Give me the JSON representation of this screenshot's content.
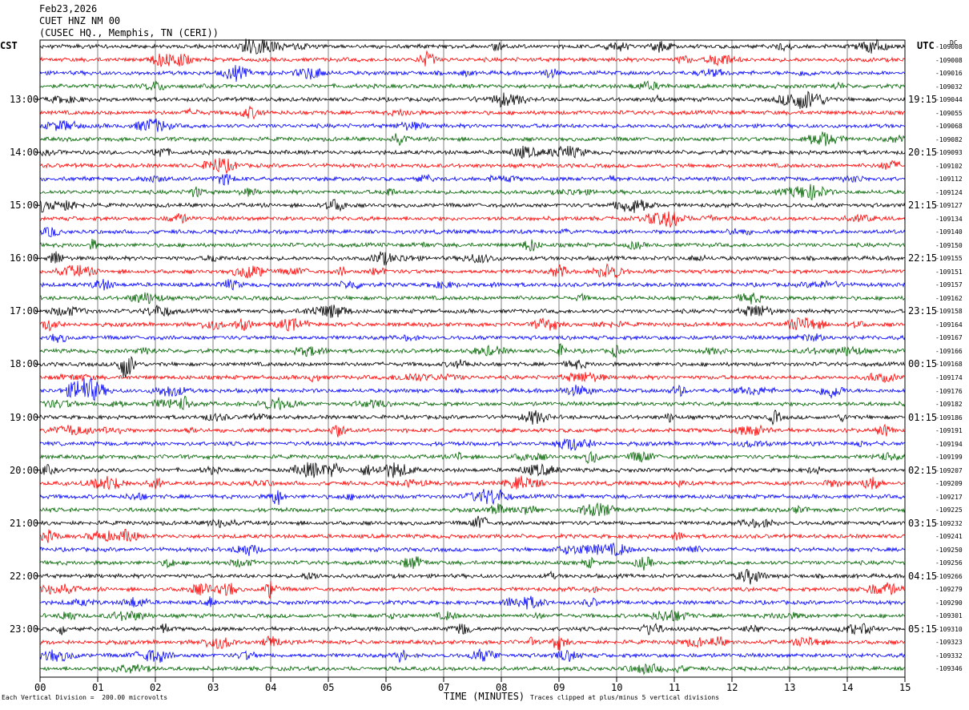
{
  "header": {
    "date": "Feb23,2026",
    "station": "CUET HNZ NM 00",
    "location": "(CUSEC HQ., Memphis, TN (CERI))"
  },
  "left_tz": "CST",
  "right_tz": "UTC",
  "dc_label": "DC",
  "footer": {
    "scale": "Each Vertical Division =  200.00 microvolts",
    "clip": "Traces clipped at plus/minus 5 vertical divisions"
  },
  "colors": {
    "trace_cycle": [
      "#000000",
      "#ff0000",
      "#0000ff",
      "#006400"
    ],
    "grid": "#808080"
  },
  "chart_data": {
    "type": "line",
    "xlabel": "TIME (MINUTES)",
    "x_ticks": [
      "00",
      "01",
      "02",
      "03",
      "04",
      "05",
      "06",
      "07",
      "08",
      "09",
      "10",
      "11",
      "12",
      "13",
      "14",
      "15"
    ],
    "xlim": [
      0,
      15
    ],
    "left_hour_labels": [
      "13:00",
      "14:00",
      "15:00",
      "16:00",
      "17:00",
      "18:00",
      "19:00",
      "20:00",
      "21:00",
      "22:00",
      "23:00"
    ],
    "right_hour_labels": [
      "19:15",
      "20:15",
      "21:15",
      "22:15",
      "23:15",
      "00:15",
      "01:15",
      "02:15",
      "03:15",
      "04:15",
      "05:15"
    ],
    "dc_offsets": [
      -109008,
      -109008,
      -109016,
      -109032,
      -109044,
      -109055,
      -109068,
      -109082,
      -109093,
      -109102,
      -109112,
      -109124,
      -109127,
      -109134,
      -109140,
      -109150,
      -109155,
      -109151,
      -109157,
      -109162,
      -109158,
      -109164,
      -109167,
      -109166,
      -109168,
      -109174,
      -109176,
      -109182,
      -109186,
      -109191,
      -109194,
      -109199,
      -109207,
      -109209,
      -109217,
      -109225,
      -109232,
      -109241,
      -109250,
      -109256,
      -109266,
      -109279,
      -109290,
      -109301,
      -109310,
      -109323,
      -109332,
      -109346
    ]
  }
}
